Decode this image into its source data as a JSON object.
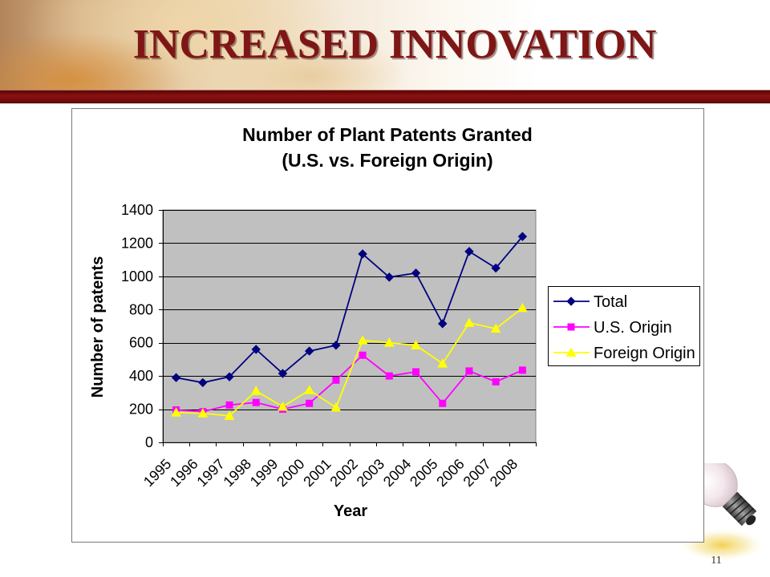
{
  "slide": {
    "title": "INCREASED INNOVATION",
    "page_number": "11"
  },
  "theme": {
    "title_color": "#7E1616",
    "band_color": "#7A0A0A",
    "background": "#FFFFFF"
  },
  "icons": {
    "corner_clipart": "lightbulb-icon"
  },
  "chart_data": {
    "type": "line",
    "title": "Number of Plant Patents Granted",
    "subtitle": "(U.S. vs. Foreign Origin)",
    "xlabel": "Year",
    "ylabel": "Number of patents",
    "categories": [
      "1995",
      "1996",
      "1997",
      "1998",
      "1999",
      "2000",
      "2001",
      "2002",
      "2003",
      "2004",
      "2005",
      "2006",
      "2007",
      "2008"
    ],
    "ylim": [
      0,
      1400
    ],
    "yticks": [
      0,
      200,
      400,
      600,
      800,
      1000,
      1200,
      1400
    ],
    "grid": true,
    "legend_position": "right",
    "plot_background": "#C0C0C0",
    "series": [
      {
        "name": "Total",
        "color": "#000080",
        "marker": "diamond",
        "values": [
          390,
          360,
          395,
          560,
          415,
          550,
          585,
          1135,
          995,
          1020,
          715,
          1150,
          1050,
          1240
        ]
      },
      {
        "name": "U.S. Origin",
        "color": "#FF00FF",
        "marker": "square",
        "values": [
          195,
          185,
          225,
          240,
          200,
          235,
          375,
          525,
          400,
          425,
          235,
          430,
          365,
          435
        ]
      },
      {
        "name": "Foreign Origin",
        "color": "#FFFF00",
        "marker": "triangle",
        "values": [
          180,
          175,
          160,
          310,
          215,
          315,
          210,
          615,
          600,
          585,
          475,
          720,
          685,
          810
        ]
      }
    ]
  }
}
